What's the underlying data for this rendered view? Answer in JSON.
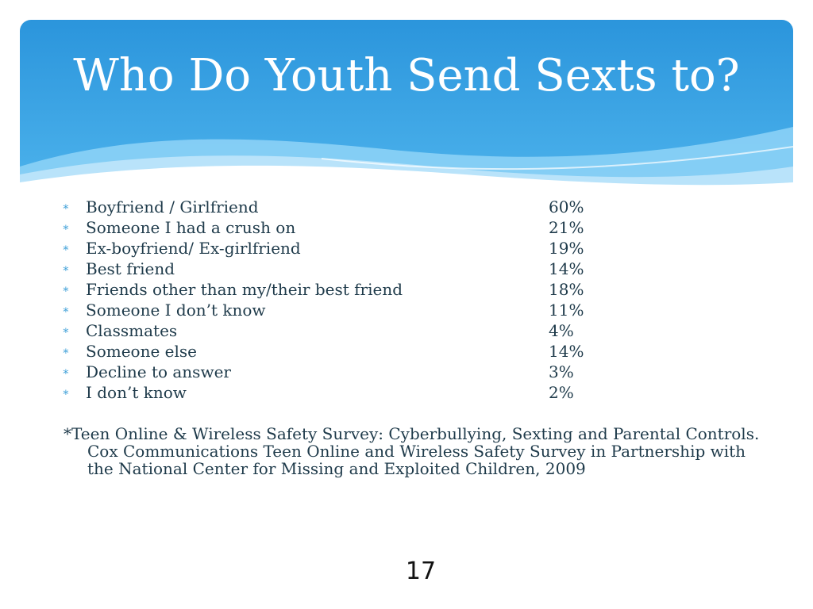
{
  "title": "Who Do Youth Send Sexts to?",
  "colors": {
    "header_blue": "#2f9de0",
    "header_light": "#7cc9f2",
    "text": "#1e3a4a",
    "bullet": "#3fa0d8"
  },
  "items": [
    {
      "bullet": "∗",
      "label": "Boyfriend / Girlfriend",
      "value": "60%"
    },
    {
      "bullet": "∗",
      "label": "Someone I had a crush on",
      "value": "21%"
    },
    {
      "bullet": "∗",
      "label": "Ex-boyfriend/ Ex-girlfriend",
      "value": "19%"
    },
    {
      "bullet": "∗",
      "label": "Best friend",
      "value": "14%"
    },
    {
      "bullet": "∗",
      "label": "Friends other than my/their best friend",
      "value": "18%"
    },
    {
      "bullet": "∗",
      "label": "Someone I don’t know",
      "value": "11%"
    },
    {
      "bullet": "∗",
      "label": "Classmates",
      "value": "4%"
    },
    {
      "bullet": "∗",
      "label": "Someone else",
      "value": "14%"
    },
    {
      "bullet": "∗",
      "label": "Decline to answer",
      "value": "3%"
    },
    {
      "bullet": "∗",
      "label": "I don’t know",
      "value": "2%"
    }
  ],
  "source": "*Teen Online & Wireless Safety Survey: Cyberbullying, Sexting and Parental Controls.  Cox Communications Teen Online and Wireless Safety Survey in Partnership with the National Center for Missing and Exploited Children, 2009",
  "page_number": "17"
}
